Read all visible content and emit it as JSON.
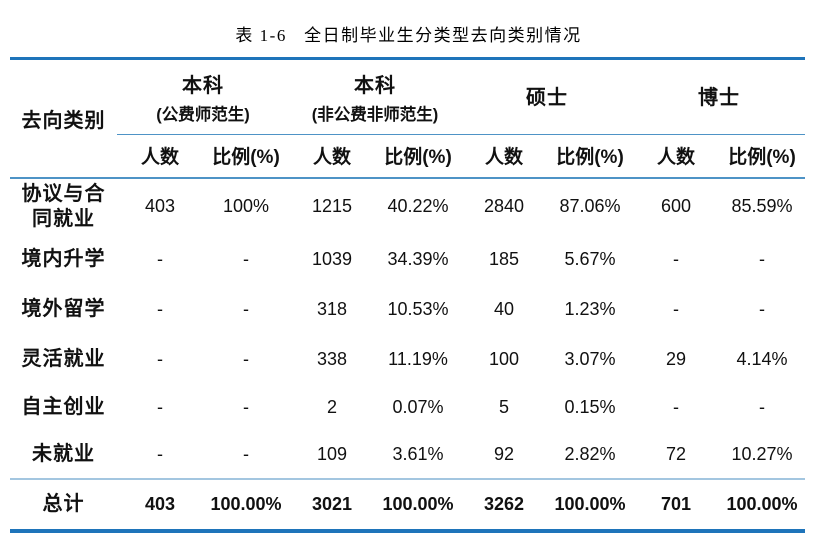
{
  "title": "表 1-6   全日制毕业生分类型去向类别情况",
  "colors": {
    "rule_dark": "#1e74ba",
    "rule_medium": "#4e93c6",
    "rule_light": "#a3c6e0"
  },
  "table": {
    "row_header": "去向类别",
    "groups": [
      {
        "line1": "本科",
        "line2": "(公费师范生)"
      },
      {
        "line1": "本科",
        "line2": "(非公费非师范生)"
      },
      {
        "line1": "硕士",
        "line2": ""
      },
      {
        "line1": "博士",
        "line2": ""
      }
    ],
    "subheaders": {
      "count": "人数",
      "ratio": "比例(%)"
    },
    "rows": [
      {
        "label": "协议与合同就业",
        "values": [
          "403",
          "100%",
          "1215",
          "40.22%",
          "2840",
          "87.06%",
          "600",
          "85.59%"
        ]
      },
      {
        "label": "境内升学",
        "values": [
          "-",
          "-",
          "1039",
          "34.39%",
          "185",
          "5.67%",
          "-",
          "-"
        ]
      },
      {
        "label": "境外留学",
        "values": [
          "-",
          "-",
          "318",
          "10.53%",
          "40",
          "1.23%",
          "-",
          "-"
        ]
      },
      {
        "label": "灵活就业",
        "values": [
          "-",
          "-",
          "338",
          "11.19%",
          "100",
          "3.07%",
          "29",
          "4.14%"
        ]
      },
      {
        "label": "自主创业",
        "values": [
          "-",
          "-",
          "2",
          "0.07%",
          "5",
          "0.15%",
          "-",
          "-"
        ]
      },
      {
        "label": "未就业",
        "values": [
          "-",
          "-",
          "109",
          "3.61%",
          "92",
          "2.82%",
          "72",
          "10.27%"
        ]
      }
    ],
    "total_row": {
      "label": "总计",
      "values": [
        "403",
        "100.00%",
        "3021",
        "100.00%",
        "3262",
        "100.00%",
        "701",
        "100.00%"
      ]
    }
  }
}
